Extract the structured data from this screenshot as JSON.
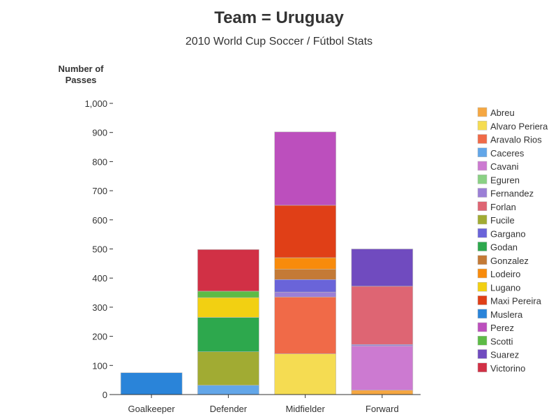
{
  "chart_data": {
    "type": "bar",
    "stacked": true,
    "title": "Team = Uruguay",
    "subtitle": "2010 World Cup Soccer / Fútbol Stats",
    "ylabel_lines": [
      "Number of",
      "Passes"
    ],
    "xlabel": "",
    "ylim": [
      0,
      1000
    ],
    "yticks": [
      0,
      100,
      200,
      300,
      400,
      500,
      600,
      700,
      800,
      900,
      1000
    ],
    "ytick_labels": [
      "0",
      "100",
      "200",
      "300",
      "400",
      "500",
      "600",
      "700",
      "800",
      "900",
      "1,000"
    ],
    "categories": [
      "Goalkeeper",
      "Defender",
      "Midfielder",
      "Forward"
    ],
    "legend_position": "right",
    "series": [
      {
        "name": "Abreu",
        "color": "#f5a742",
        "values": [
          0,
          0,
          0,
          15
        ]
      },
      {
        "name": "Alvaro Periera",
        "color": "#f5dc52",
        "values": [
          0,
          0,
          140,
          0
        ]
      },
      {
        "name": "Aravalo Rios",
        "color": "#f06a48",
        "values": [
          0,
          0,
          195,
          0
        ]
      },
      {
        "name": "Caceres",
        "color": "#62a6e8",
        "values": [
          0,
          32,
          0,
          0
        ]
      },
      {
        "name": "Cavani",
        "color": "#cc7ad1",
        "values": [
          0,
          0,
          0,
          152
        ]
      },
      {
        "name": "Eguren",
        "color": "#8ad184",
        "values": [
          0,
          0,
          0,
          0
        ]
      },
      {
        "name": "Fernandez",
        "color": "#9b7fd6",
        "values": [
          0,
          0,
          17,
          5
        ]
      },
      {
        "name": "Forlan",
        "color": "#de6573",
        "values": [
          0,
          0,
          0,
          200
        ]
      },
      {
        "name": "Fucile",
        "color": "#a1ab33",
        "values": [
          0,
          115,
          0,
          0
        ]
      },
      {
        "name": "Gargano",
        "color": "#6a64d9",
        "values": [
          0,
          0,
          43,
          0
        ]
      },
      {
        "name": "Godan",
        "color": "#2da84d",
        "values": [
          0,
          118,
          0,
          0
        ]
      },
      {
        "name": "Gonzalez",
        "color": "#c47a36",
        "values": [
          0,
          0,
          35,
          0
        ]
      },
      {
        "name": "Lodeiro",
        "color": "#f88b0c",
        "values": [
          0,
          0,
          40,
          0
        ]
      },
      {
        "name": "Lugano",
        "color": "#f2d012",
        "values": [
          0,
          68,
          0,
          0
        ]
      },
      {
        "name": "Maxi Pereira",
        "color": "#e03f17",
        "values": [
          0,
          0,
          180,
          0
        ]
      },
      {
        "name": "Muslera",
        "color": "#2a84d9",
        "values": [
          75,
          0,
          0,
          0
        ]
      },
      {
        "name": "Perez",
        "color": "#bc4fbd",
        "values": [
          0,
          0,
          252,
          0
        ]
      },
      {
        "name": "Scotti",
        "color": "#5dbb46",
        "values": [
          0,
          22,
          0,
          0
        ]
      },
      {
        "name": "Suarez",
        "color": "#704bbf",
        "values": [
          0,
          0,
          0,
          128
        ]
      },
      {
        "name": "Victorino",
        "color": "#d13045",
        "values": [
          0,
          143,
          0,
          0
        ]
      }
    ]
  }
}
